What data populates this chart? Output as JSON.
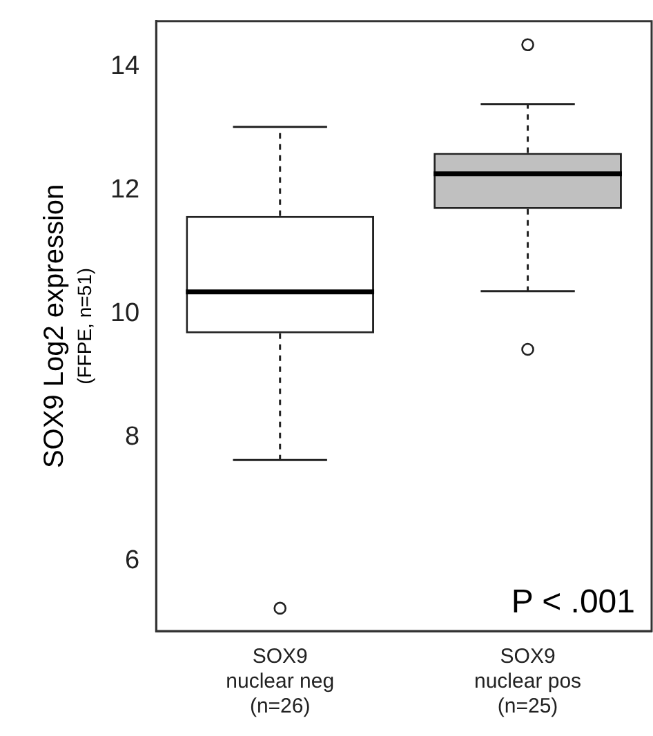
{
  "chart_data": {
    "type": "box",
    "ylabel": "SOX9 Log2 expression\n(FFPE, n=51)",
    "categories": [
      "SOX9\nnuclear neg\n(n=26)",
      "SOX9\nnuclear pos\n(n=25)"
    ],
    "colors": [
      "#ffffff",
      "#c0c0c0"
    ],
    "boxes": [
      {
        "low": 7.64,
        "q1": 9.69,
        "median": 10.36,
        "q3": 11.59,
        "high": 13.03,
        "outliers": [
          5.24
        ]
      },
      {
        "low": 10.37,
        "q1": 11.7,
        "median": 12.27,
        "q3": 12.61,
        "high": 13.4,
        "outliers": [
          14.36,
          9.43
        ]
      }
    ],
    "ylim": [
      4.87,
      14.74
    ],
    "yticks": [
      6,
      8,
      10,
      12,
      14
    ],
    "grid": false,
    "legend": false,
    "annotations": [
      "P < .001"
    ]
  }
}
